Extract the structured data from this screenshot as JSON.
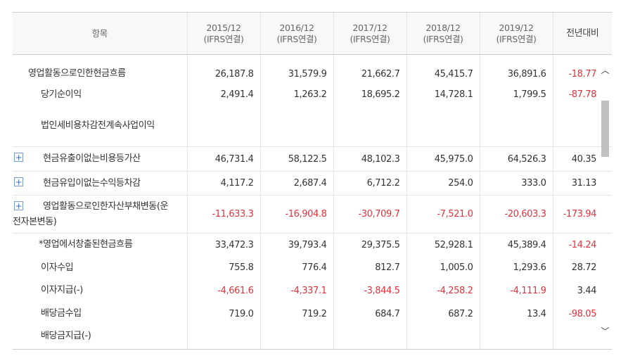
{
  "header": {
    "item": "항목",
    "years": [
      {
        "year": "2015/12",
        "basis": "(IFRS연결)"
      },
      {
        "year": "2016/12",
        "basis": "(IFRS연결)"
      },
      {
        "year": "2017/12",
        "basis": "(IFRS연결)"
      },
      {
        "year": "2018/12",
        "basis": "(IFRS연결)"
      },
      {
        "year": "2019/12",
        "basis": "(IFRS연결)"
      }
    ],
    "yoy": "전년대비"
  },
  "expand_glyph": "+",
  "rows": [
    {
      "label": "영업활동으로인한현금흐름",
      "v": [
        "26,187.8",
        "31,579.9",
        "21,662.7",
        "45,415.7",
        "36,891.6"
      ],
      "yoy": "-18.77"
    },
    {
      "label": "당기순이익",
      "v": [
        "2,491.4",
        "1,263.2",
        "18,695.2",
        "14,728.1",
        "1,799.5"
      ],
      "yoy": "-87.78"
    },
    {
      "label": "법인세비용차감전계속사업이익",
      "v": [
        "",
        "",
        "",
        "",
        ""
      ],
      "yoy": ""
    },
    {
      "label": "현금유출이없는비용등가산",
      "v": [
        "46,731.4",
        "58,122.5",
        "48,102.3",
        "45,975.0",
        "64,526.3"
      ],
      "yoy": "40.35"
    },
    {
      "label": "현금유입이없는수익등차감",
      "v": [
        "4,117.2",
        "2,687.4",
        "6,712.2",
        "254.0",
        "333.0"
      ],
      "yoy": "31.13"
    },
    {
      "label": "영업활동으로인한자산부채변동(운전자본변동)",
      "v": [
        "-11,633.3",
        "-16,904.8",
        "-30,709.7",
        "-7,521.0",
        "-20,603.3"
      ],
      "yoy": "-173.94"
    },
    {
      "label": "*영업에서창출된현금흐름",
      "v": [
        "33,472.3",
        "39,793.4",
        "29,375.5",
        "52,928.1",
        "45,389.4"
      ],
      "yoy": "-14.24"
    },
    {
      "label": "이자수입",
      "v": [
        "755.8",
        "776.4",
        "812.7",
        "1,005.0",
        "1,293.6"
      ],
      "yoy": "28.72"
    },
    {
      "label": "이자지급(-)",
      "v": [
        "-4,661.6",
        "-4,337.1",
        "-3,844.5",
        "-4,258.2",
        "-4,111.9"
      ],
      "yoy": "3.44"
    },
    {
      "label": "배당금수입",
      "v": [
        "719.0",
        "719.2",
        "684.7",
        "687.2",
        "13.4"
      ],
      "yoy": "-98.05"
    },
    {
      "label": "배당금지급(-)",
      "v": [
        "",
        "",
        "",
        "",
        ""
      ],
      "yoy": ""
    }
  ],
  "scrollbar": {
    "up_glyph": "︿",
    "down_glyph": "﹀"
  }
}
